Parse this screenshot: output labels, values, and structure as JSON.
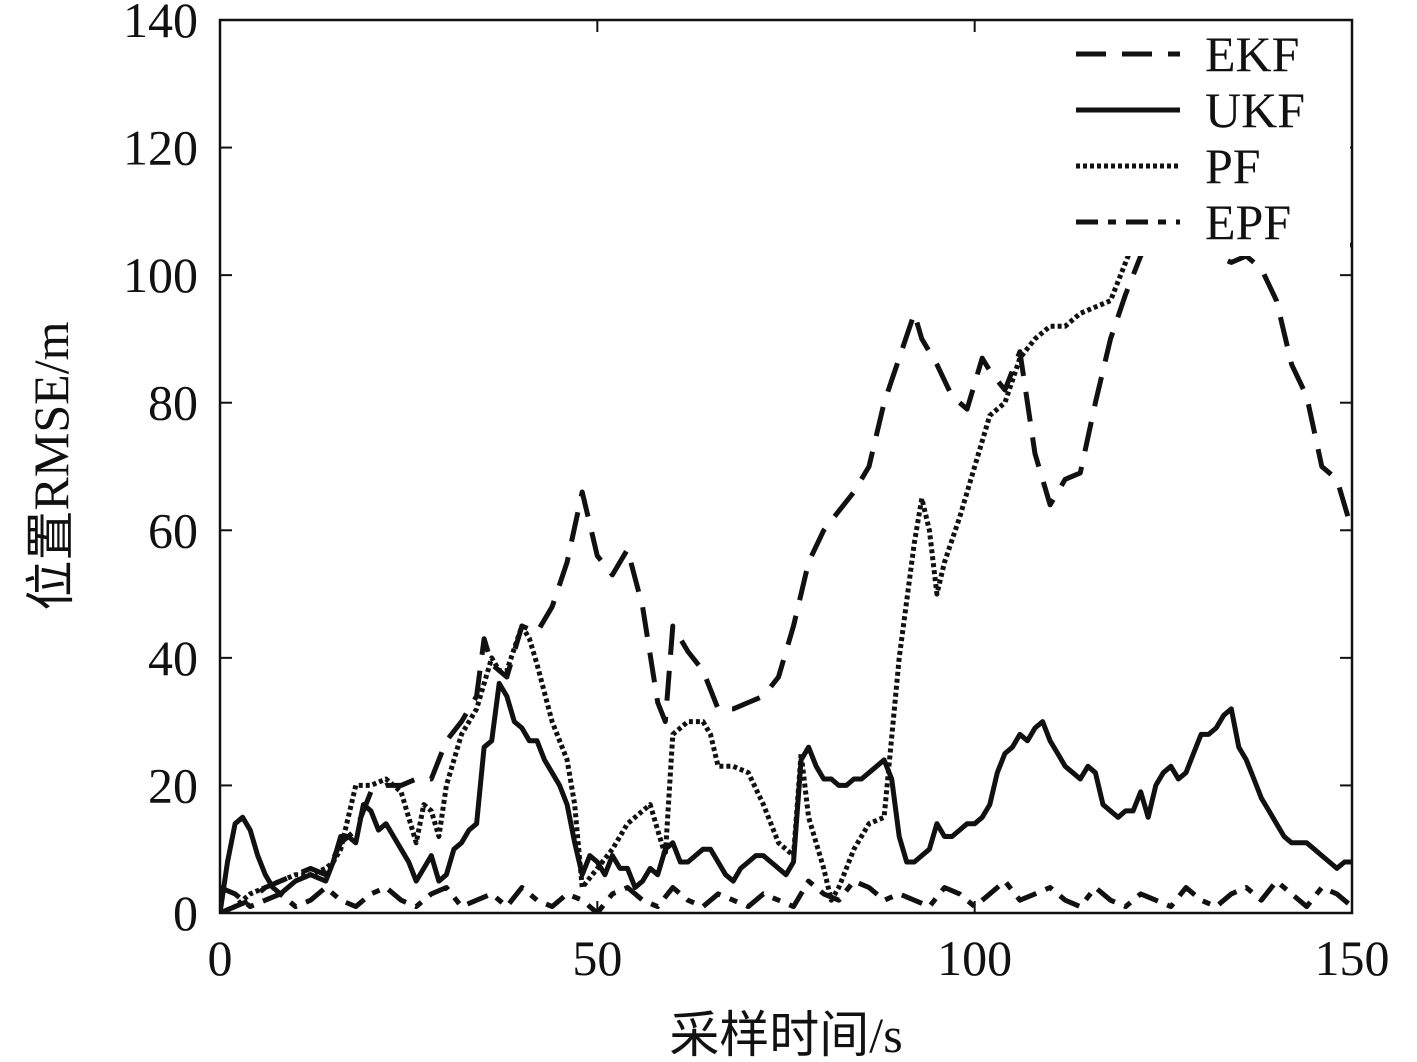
{
  "chart_data": {
    "type": "line",
    "title": "",
    "xlabel": "采样时间/s",
    "ylabel": "位置RMSE/m",
    "xlim": [
      0,
      150
    ],
    "ylim": [
      0,
      140
    ],
    "xticks": [
      0,
      50,
      100,
      150
    ],
    "yticks": [
      0,
      20,
      40,
      60,
      80,
      100,
      120,
      140
    ],
    "grid": false,
    "legend_position": "top-right",
    "series": [
      {
        "name": "EKF",
        "style": "dashed",
        "x": [
          0,
          2,
          4,
          6,
          8,
          10,
          12,
          14,
          16,
          18,
          20,
          22,
          24,
          26,
          28,
          30,
          32,
          34,
          35,
          36,
          38,
          40,
          42,
          44,
          46,
          48,
          50,
          52,
          54,
          56,
          58,
          59,
          60,
          62,
          64,
          66,
          68,
          70,
          72,
          74,
          76,
          78,
          80,
          82,
          84,
          86,
          88,
          90,
          92,
          93,
          95,
          97,
          99,
          101,
          102,
          104,
          106,
          108,
          110,
          112,
          114,
          116,
          118,
          120,
          122,
          124,
          126,
          128,
          130,
          132,
          134,
          136,
          138,
          140,
          142,
          144,
          146,
          148,
          150
        ],
        "values": [
          0,
          1,
          2,
          4,
          5,
          6,
          7,
          6,
          11,
          13,
          19,
          20,
          20,
          21,
          21,
          27,
          30,
          34,
          43,
          39,
          37,
          45,
          44,
          48,
          55,
          66,
          56,
          53,
          57,
          48,
          33,
          30,
          45,
          41,
          38,
          32,
          32,
          33,
          34,
          37,
          45,
          55,
          60,
          63,
          66,
          70,
          80,
          87,
          94,
          90,
          86,
          81,
          79,
          87,
          85,
          82,
          88,
          72,
          64,
          68,
          69,
          80,
          90,
          97,
          103,
          108,
          113,
          112,
          108,
          103,
          102,
          103,
          101,
          96,
          86,
          81,
          70,
          68,
          60
        ]
      },
      {
        "name": "UKF",
        "style": "solid",
        "x": [
          0,
          1,
          2,
          3,
          4,
          5,
          6,
          7,
          8,
          9,
          10,
          12,
          14,
          15,
          16,
          17,
          18,
          19,
          20,
          21,
          22,
          23,
          24,
          25,
          26,
          27,
          28,
          29,
          30,
          31,
          32,
          33,
          34,
          35,
          36,
          37,
          38,
          39,
          40,
          41,
          42,
          43,
          44,
          45,
          46,
          47,
          48,
          49,
          50,
          51,
          52,
          53,
          54,
          55,
          56,
          57,
          58,
          59,
          60,
          61,
          62,
          63,
          64,
          65,
          66,
          67,
          68,
          69,
          70,
          71,
          72,
          73,
          74,
          75,
          76,
          77,
          78,
          79,
          80,
          81,
          82,
          83,
          84,
          85,
          86,
          87,
          88,
          89,
          90,
          91,
          92,
          93,
          94,
          95,
          96,
          97,
          98,
          99,
          100,
          101,
          102,
          103,
          104,
          105,
          106,
          107,
          108,
          109,
          110,
          111,
          112,
          113,
          114,
          115,
          116,
          117,
          118,
          119,
          120,
          121,
          122,
          123,
          124,
          125,
          126,
          127,
          128,
          129,
          130,
          131,
          132,
          133,
          134,
          135,
          136,
          137,
          138,
          139,
          140,
          141,
          142,
          143,
          144,
          145,
          146,
          147,
          148,
          149,
          150
        ],
        "values": [
          0,
          8,
          14,
          15,
          13,
          9,
          6,
          4,
          3,
          4,
          5,
          6,
          5,
          8,
          12,
          12,
          11,
          17,
          16,
          13,
          14,
          12,
          10,
          8,
          5,
          7,
          9,
          5,
          6,
          10,
          11,
          13,
          14,
          26,
          27,
          36,
          34,
          30,
          29,
          27,
          27,
          24,
          22,
          20,
          17,
          11,
          6,
          9,
          8,
          6,
          9,
          7,
          7,
          4,
          5,
          7,
          6,
          10,
          11,
          8,
          8,
          9,
          10,
          10,
          8,
          6,
          5,
          7,
          8,
          9,
          9,
          8,
          7,
          6,
          8,
          24,
          26,
          23,
          21,
          21,
          20,
          20,
          21,
          21,
          22,
          23,
          24,
          21,
          12,
          8,
          8,
          9,
          10,
          14,
          12,
          12,
          13,
          14,
          14,
          15,
          17,
          22,
          25,
          26,
          28,
          27,
          29,
          30,
          27,
          25,
          23,
          22,
          21,
          23,
          22,
          17,
          16,
          15,
          16,
          16,
          19,
          15,
          20,
          22,
          23,
          21,
          22,
          25,
          28,
          28,
          29,
          31,
          32,
          26,
          24,
          21,
          18,
          16,
          14,
          12,
          11,
          11,
          11,
          10,
          9,
          8,
          7,
          8,
          8
        ]
      },
      {
        "name": "PF",
        "style": "dotted",
        "x": [
          0,
          2,
          4,
          6,
          8,
          10,
          12,
          14,
          15,
          16,
          18,
          20,
          22,
          24,
          26,
          27,
          28,
          29,
          30,
          32,
          34,
          36,
          37,
          38,
          40,
          41,
          42,
          44,
          46,
          47,
          48,
          50,
          52,
          54,
          56,
          57,
          58,
          59,
          60,
          62,
          64,
          65,
          66,
          68,
          70,
          72,
          74,
          76,
          77,
          78,
          80,
          81,
          82,
          84,
          86,
          88,
          90,
          92,
          93,
          94,
          95,
          96,
          98,
          100,
          102,
          104,
          106,
          108,
          110,
          112,
          114,
          116,
          118,
          120,
          122,
          124,
          126,
          128,
          130,
          132,
          134,
          136,
          138,
          140,
          142,
          144,
          146,
          148,
          150
        ],
        "values": [
          0,
          1,
          3,
          4,
          5,
          6,
          6,
          7,
          8,
          10,
          20,
          20,
          21,
          19,
          11,
          17,
          16,
          12,
          20,
          28,
          32,
          40,
          38,
          38,
          45,
          43,
          39,
          30,
          24,
          17,
          4,
          7,
          10,
          14,
          16,
          17,
          13,
          9,
          28,
          30,
          30,
          28,
          23,
          23,
          22,
          17,
          11,
          9,
          25,
          15,
          7,
          2,
          4,
          10,
          14,
          15,
          40,
          58,
          65,
          60,
          50,
          55,
          62,
          70,
          78,
          80,
          87,
          90,
          92,
          92,
          94,
          95,
          96,
          102,
          108,
          113,
          116,
          117,
          116,
          116,
          115,
          114,
          113,
          112,
          112,
          110,
          109,
          108,
          104
        ]
      },
      {
        "name": "EPF",
        "style": "dash-dot",
        "x": [
          0,
          2,
          4,
          6,
          8,
          10,
          12,
          14,
          16,
          18,
          20,
          22,
          24,
          26,
          28,
          30,
          32,
          34,
          36,
          38,
          40,
          42,
          44,
          46,
          48,
          50,
          52,
          54,
          56,
          58,
          60,
          62,
          64,
          66,
          68,
          70,
          72,
          74,
          76,
          78,
          80,
          82,
          84,
          86,
          88,
          90,
          92,
          94,
          96,
          98,
          100,
          102,
          104,
          106,
          108,
          110,
          112,
          114,
          116,
          118,
          120,
          122,
          124,
          126,
          128,
          130,
          132,
          134,
          136,
          138,
          140,
          142,
          144,
          146,
          148,
          150
        ],
        "values": [
          4,
          3,
          1,
          2,
          3,
          1,
          2,
          4,
          2,
          1,
          3,
          4,
          2,
          1,
          3,
          4,
          1,
          2,
          3,
          1,
          4,
          2,
          1,
          3,
          2,
          0,
          3,
          4,
          2,
          1,
          4,
          2,
          1,
          3,
          2,
          1,
          3,
          2,
          1,
          5,
          3,
          2,
          5,
          4,
          2,
          3,
          2,
          1,
          4,
          3,
          1,
          3,
          5,
          2,
          3,
          4,
          2,
          1,
          4,
          2,
          1,
          3,
          2,
          1,
          4,
          2,
          1,
          3,
          4,
          2,
          5,
          3,
          1,
          4,
          3,
          1
        ]
      }
    ]
  }
}
